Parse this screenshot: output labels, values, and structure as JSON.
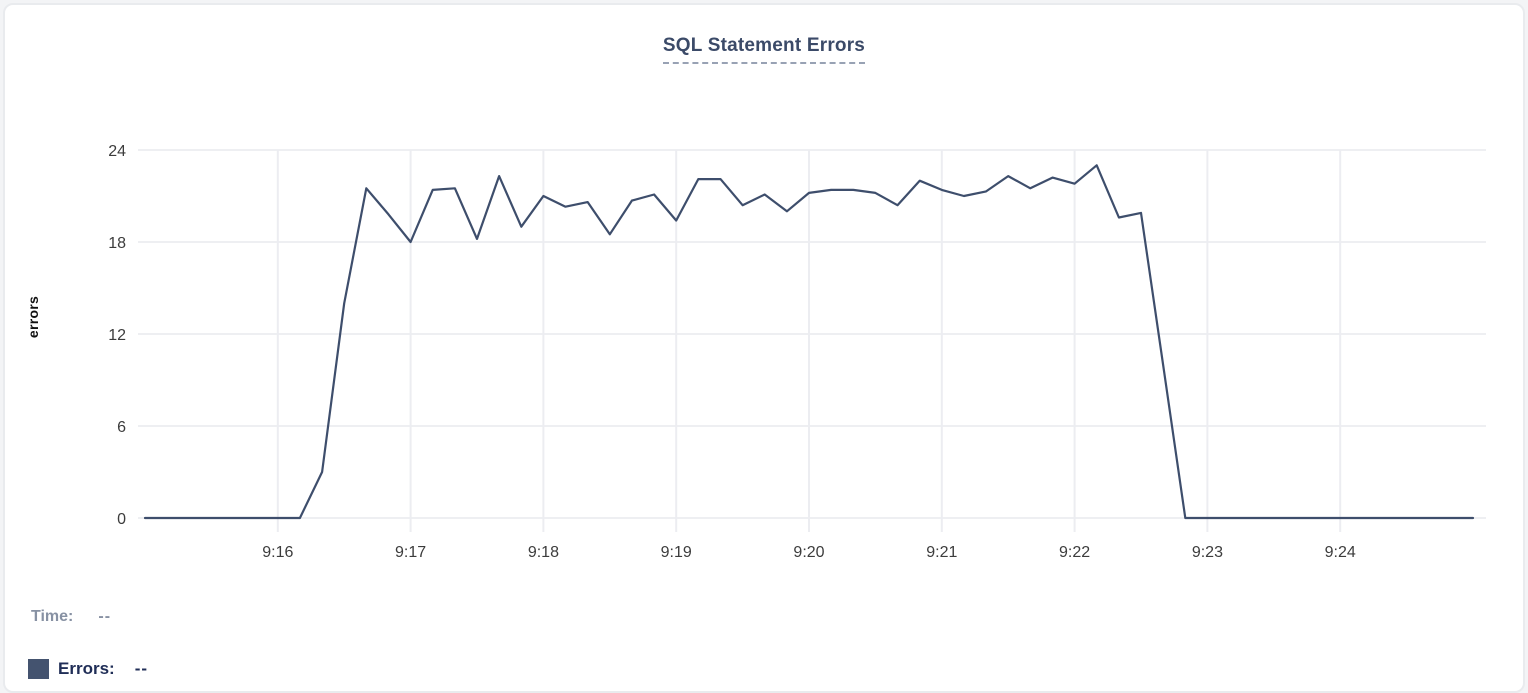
{
  "card": {
    "title": "SQL Statement Errors"
  },
  "chart_data": {
    "type": "line",
    "title": "SQL Statement Errors",
    "xlabel": "",
    "ylabel": "errors",
    "ylim": [
      0,
      24
    ],
    "yticks": [
      0,
      6,
      12,
      18,
      24
    ],
    "xticks": [
      "9:16",
      "9:17",
      "9:18",
      "9:19",
      "9:20",
      "9:21",
      "9:22",
      "9:23",
      "9:24"
    ],
    "x_range": [
      "9:15:00",
      "9:25:00"
    ],
    "grid": true,
    "legend_position": "bottom-left",
    "line_color": "#3e4e6c",
    "grid_color": "#ecedf1",
    "series": [
      {
        "name": "Errors",
        "color": "#3e4e6c",
        "points": [
          [
            "9:15:00",
            0
          ],
          [
            "9:15:10",
            0
          ],
          [
            "9:15:20",
            0
          ],
          [
            "9:15:30",
            0
          ],
          [
            "9:15:40",
            0
          ],
          [
            "9:15:50",
            0
          ],
          [
            "9:16:00",
            0
          ],
          [
            "9:16:10",
            0
          ],
          [
            "9:16:20",
            3
          ],
          [
            "9:16:30",
            14
          ],
          [
            "9:16:40",
            21.5
          ],
          [
            "9:16:50",
            19.8
          ],
          [
            "9:17:00",
            18
          ],
          [
            "9:17:10",
            21.4
          ],
          [
            "9:17:20",
            21.5
          ],
          [
            "9:17:30",
            18.2
          ],
          [
            "9:17:40",
            22.3
          ],
          [
            "9:17:50",
            19
          ],
          [
            "9:18:00",
            21
          ],
          [
            "9:18:10",
            20.3
          ],
          [
            "9:18:20",
            20.6
          ],
          [
            "9:18:30",
            18.5
          ],
          [
            "9:18:40",
            20.7
          ],
          [
            "9:18:50",
            21.1
          ],
          [
            "9:19:00",
            19.4
          ],
          [
            "9:19:10",
            22.1
          ],
          [
            "9:19:20",
            22.1
          ],
          [
            "9:19:30",
            20.4
          ],
          [
            "9:19:40",
            21.1
          ],
          [
            "9:19:50",
            20
          ],
          [
            "9:20:00",
            21.2
          ],
          [
            "9:20:10",
            21.4
          ],
          [
            "9:20:20",
            21.4
          ],
          [
            "9:20:30",
            21.2
          ],
          [
            "9:20:40",
            20.4
          ],
          [
            "9:20:50",
            22
          ],
          [
            "9:21:00",
            21.4
          ],
          [
            "9:21:10",
            21
          ],
          [
            "9:21:20",
            21.3
          ],
          [
            "9:21:30",
            22.3
          ],
          [
            "9:21:40",
            21.5
          ],
          [
            "9:21:50",
            22.2
          ],
          [
            "9:22:00",
            21.8
          ],
          [
            "9:22:10",
            23
          ],
          [
            "9:22:20",
            19.6
          ],
          [
            "9:22:30",
            19.9
          ],
          [
            "9:22:40",
            10
          ],
          [
            "9:22:50",
            0
          ],
          [
            "9:23:00",
            0
          ],
          [
            "9:23:10",
            0
          ],
          [
            "9:23:20",
            0
          ],
          [
            "9:23:30",
            0
          ],
          [
            "9:23:40",
            0
          ],
          [
            "9:23:50",
            0
          ],
          [
            "9:24:00",
            0
          ],
          [
            "9:24:10",
            0
          ],
          [
            "9:24:20",
            0
          ],
          [
            "9:24:30",
            0
          ],
          [
            "9:24:40",
            0
          ],
          [
            "9:24:50",
            0
          ],
          [
            "9:25:00",
            0
          ]
        ]
      }
    ]
  },
  "tooltip": {
    "time_label": "Time:",
    "time_value": "--",
    "errors_label": "Errors:",
    "errors_value": "--"
  },
  "colors": {
    "line": "#3e4e6c",
    "swatch": "#44536f",
    "title": "#3b4a68",
    "title_underline": "#98a2b4",
    "grid": "#ecedf1",
    "tick_text": "#3c3c3c",
    "time_gray": "#8791a3",
    "errors_navy": "#202e57",
    "card_border": "#e9ebee",
    "card_bg": "#ffffff"
  }
}
